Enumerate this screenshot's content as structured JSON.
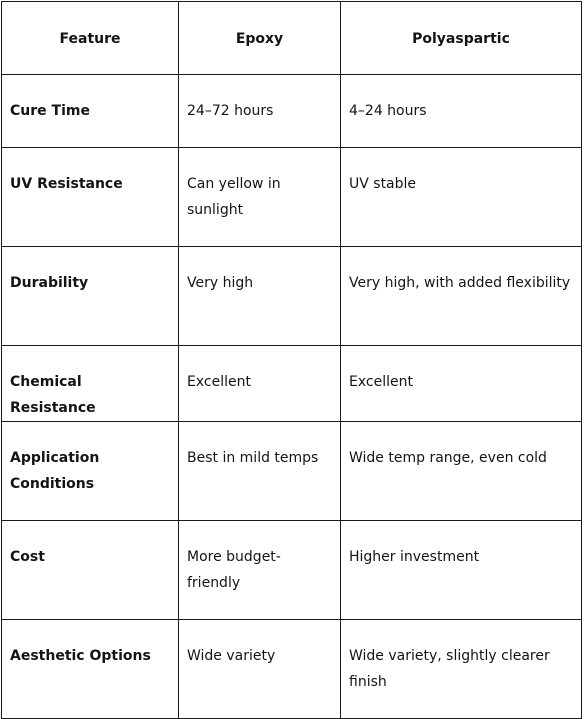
{
  "table": {
    "headers": [
      "Feature",
      "Epoxy",
      "Polyaspartic"
    ],
    "rows": [
      {
        "feature": "Cure Time",
        "epoxy": "24–72 hours",
        "polyaspartic": "4–24 hours"
      },
      {
        "feature": "UV Resistance",
        "epoxy": "Can yellow in sunlight",
        "polyaspartic": "UV stable"
      },
      {
        "feature": "Durability",
        "epoxy": "Very high",
        "polyaspartic": "Very high, with added flexibility"
      },
      {
        "feature": "Chemical Resistance",
        "epoxy": "Excellent",
        "polyaspartic": "Excellent"
      },
      {
        "feature": "Application Conditions",
        "epoxy": "Best in mild temps",
        "polyaspartic": "Wide temp range, even cold"
      },
      {
        "feature": "Cost",
        "epoxy": "More budget-friendly",
        "polyaspartic": "Higher investment"
      },
      {
        "feature": "Aesthetic Options",
        "epoxy": "Wide variety",
        "polyaspartic": "Wide variety, slightly clearer finish"
      }
    ]
  },
  "colors": {
    "border": "#1a1a1a",
    "text": "#141414",
    "background": "#ffffff"
  }
}
